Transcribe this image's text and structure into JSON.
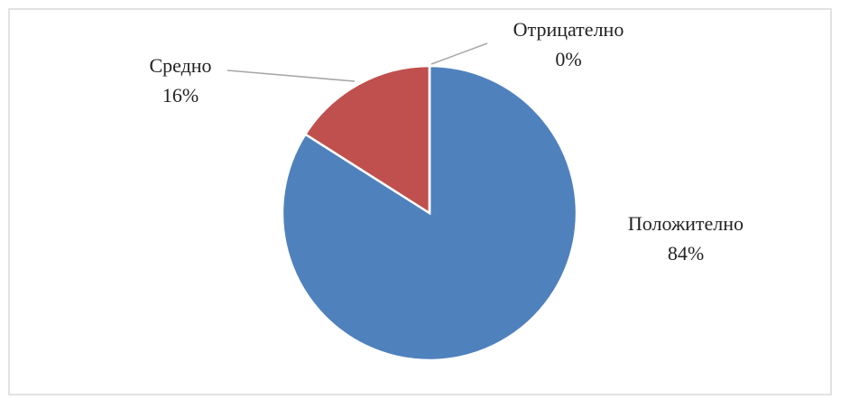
{
  "chart_data": {
    "type": "pie",
    "categories": [
      "Положително",
      "Средно",
      "Отрицателно"
    ],
    "values": [
      84,
      16,
      0
    ],
    "value_labels": [
      "84%",
      "16%",
      "0%"
    ],
    "colors": [
      "#4f81bd",
      "#c0504d",
      "#9bbb59"
    ]
  }
}
